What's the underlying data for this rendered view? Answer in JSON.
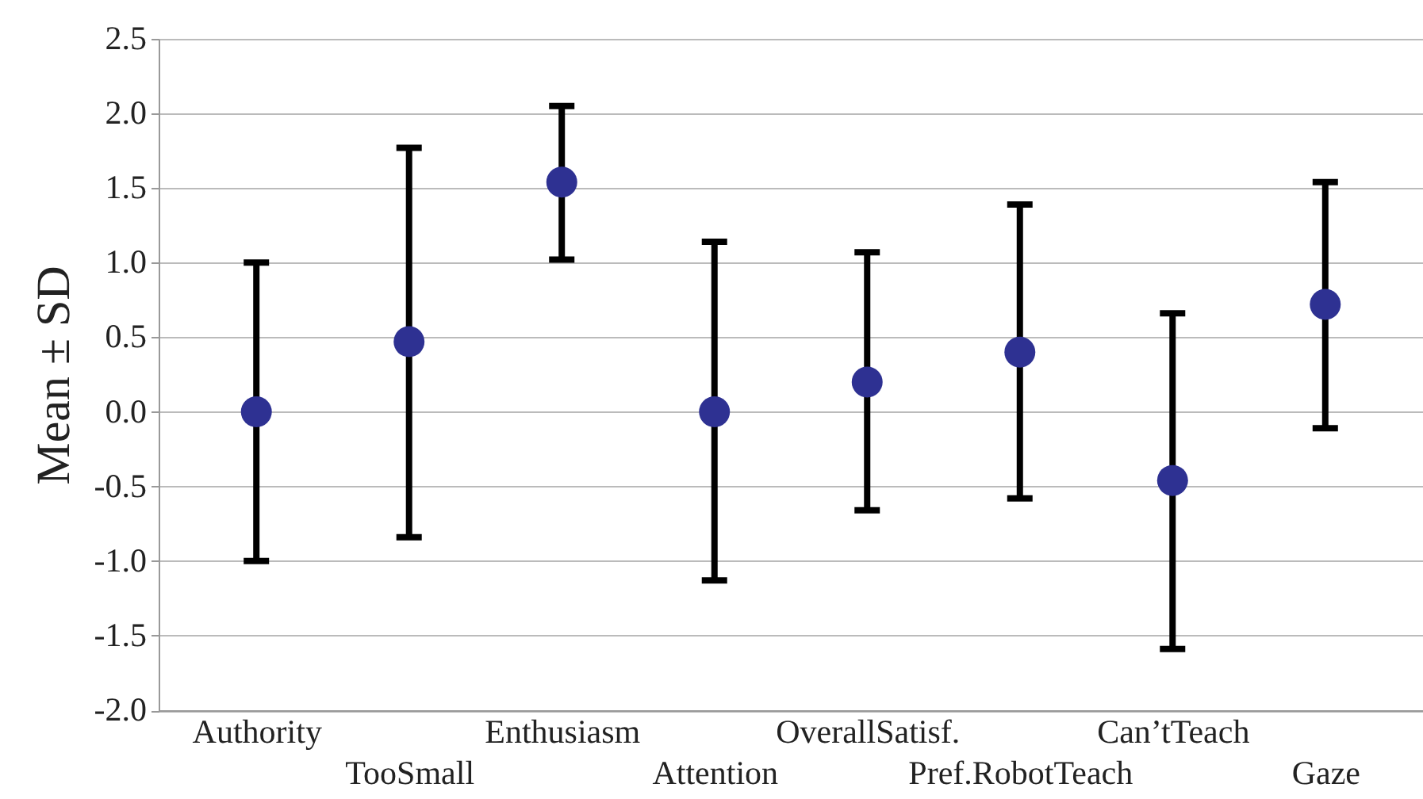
{
  "chart_data": {
    "type": "scatter",
    "ylabel": "Mean ± SD",
    "categories": [
      "Authority",
      "TooSmall",
      "Enthusiasm",
      "Attention",
      "OverallSatisf.",
      "Pref.RobotTeach",
      "Can’tTeach",
      "Gaze"
    ],
    "series": [
      {
        "color": "#2e3192",
        "values": [
          0,
          0.47,
          1.54,
          0,
          0.2,
          0.4,
          -0.46,
          0.72
        ],
        "errors": [
          [
            -1.0,
            1.0
          ],
          [
            -0.84,
            1.77
          ],
          [
            1.02,
            2.05
          ],
          [
            -1.13,
            1.14
          ],
          [
            -0.66,
            1.07
          ],
          [
            -0.58,
            1.39
          ],
          [
            -1.59,
            0.66
          ],
          [
            -0.11,
            1.54
          ]
        ]
      }
    ],
    "ylim": [
      -2.0,
      2.5
    ],
    "yticks": [
      {
        "value": -2,
        "label": "-2.0"
      },
      {
        "value": -1.5,
        "label": "-1.5"
      },
      {
        "value": -1,
        "label": "-1.0"
      },
      {
        "value": -0.5,
        "label": "-0.5"
      },
      {
        "value": 0,
        "label": "0.0"
      },
      {
        "value": 0.5,
        "label": "0.5"
      },
      {
        "value": 1,
        "label": "1.0"
      },
      {
        "value": 1.5,
        "label": "1.5"
      },
      {
        "value": 2,
        "label": "2.0"
      },
      {
        "value": 2.5,
        "label": "2.5"
      }
    ],
    "grid": "y",
    "marker": "circle"
  }
}
